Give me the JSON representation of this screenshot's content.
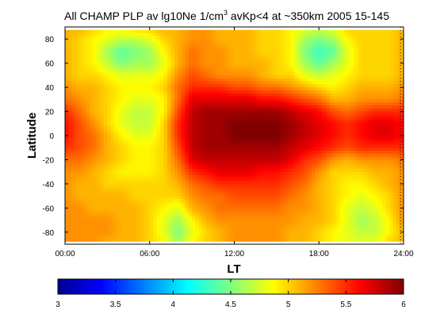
{
  "chart_data": {
    "type": "heatmap",
    "title": {
      "main": "All CHAMP PLP av lg10Ne 1/cm",
      "sup": "3",
      "rest": " avKp<4 at ~350km 2005 15-145"
    },
    "xlabel": "LT",
    "ylabel": "Latitude",
    "xlim": [
      0,
      24
    ],
    "ylim": [
      -90,
      90
    ],
    "x_ticks": [
      0,
      6,
      12,
      18,
      24
    ],
    "x_tick_labels": [
      "00:00",
      "06:00",
      "12:00",
      "18:00",
      "24:00"
    ],
    "y_ticks": [
      -80,
      -60,
      -40,
      -20,
      0,
      20,
      40,
      60,
      80
    ],
    "y_tick_labels": [
      "-80",
      "-60",
      "-40",
      "-20",
      "0",
      "20",
      "40",
      "60",
      "80"
    ],
    "colorbar": {
      "range": [
        3,
        6
      ],
      "ticks": [
        3,
        3.5,
        4,
        4.5,
        5,
        5.5,
        6
      ],
      "tick_labels": [
        "3",
        "3.5",
        "4",
        "4.5",
        "5",
        "5.5",
        "6"
      ],
      "colormap": "jet"
    },
    "grid": false,
    "lt_hours": [
      0,
      1,
      2,
      3,
      4,
      5,
      6,
      7,
      8,
      9,
      10,
      11,
      12,
      13,
      14,
      15,
      16,
      17,
      18,
      19,
      20,
      21,
      22,
      23,
      24
    ],
    "latitudes": [
      88,
      80,
      70,
      60,
      50,
      40,
      30,
      20,
      10,
      0,
      -10,
      -20,
      -30,
      -40,
      -50,
      -60,
      -70,
      -80,
      -88
    ],
    "values": [
      [
        5.1,
        5.1,
        5.0,
        4.9,
        4.9,
        5.0,
        5.0,
        5.1,
        5.1,
        5.2,
        5.2,
        5.1,
        5.1,
        5.1,
        5.0,
        5.0,
        4.9,
        4.8,
        4.7,
        4.8,
        5.0,
        5.0,
        5.0,
        5.0,
        5.1
      ],
      [
        5.1,
        5.0,
        4.9,
        4.8,
        4.7,
        4.7,
        4.8,
        5.0,
        5.1,
        5.2,
        5.2,
        5.1,
        5.1,
        5.1,
        5.0,
        5.0,
        4.9,
        4.6,
        4.5,
        4.6,
        4.9,
        5.0,
        5.0,
        5.0,
        5.1
      ],
      [
        5.1,
        5.0,
        4.9,
        4.6,
        4.4,
        4.5,
        4.6,
        4.9,
        5.1,
        5.3,
        5.2,
        5.2,
        5.1,
        5.1,
        5.0,
        5.0,
        4.9,
        4.5,
        4.3,
        4.4,
        4.8,
        5.0,
        5.0,
        5.0,
        5.1
      ],
      [
        5.1,
        5.0,
        4.9,
        4.7,
        4.5,
        4.6,
        4.6,
        4.8,
        5.1,
        5.3,
        5.2,
        5.2,
        5.1,
        5.1,
        5.1,
        5.0,
        4.9,
        4.6,
        4.4,
        4.6,
        4.8,
        5.0,
        5.0,
        5.0,
        5.1
      ],
      [
        5.1,
        5.0,
        5.0,
        4.9,
        4.8,
        4.8,
        4.8,
        4.9,
        5.2,
        5.4,
        5.3,
        5.2,
        5.2,
        5.2,
        5.1,
        5.0,
        5.0,
        4.8,
        4.7,
        4.8,
        4.9,
        5.0,
        5.0,
        5.0,
        5.1
      ],
      [
        5.2,
        5.1,
        5.1,
        5.0,
        4.9,
        4.9,
        4.9,
        5.0,
        5.3,
        5.5,
        5.5,
        5.5,
        5.4,
        5.4,
        5.3,
        5.3,
        5.2,
        5.1,
        5.0,
        4.9,
        5.0,
        5.1,
        5.1,
        5.1,
        5.2
      ],
      [
        5.3,
        5.2,
        5.1,
        5.0,
        4.9,
        4.8,
        4.8,
        4.9,
        5.3,
        5.7,
        5.7,
        5.7,
        5.7,
        5.7,
        5.6,
        5.6,
        5.5,
        5.4,
        5.3,
        5.1,
        5.1,
        5.2,
        5.2,
        5.2,
        5.3
      ],
      [
        5.5,
        5.3,
        5.1,
        5.0,
        4.8,
        4.7,
        4.7,
        4.9,
        5.4,
        5.8,
        5.9,
        5.9,
        5.9,
        5.9,
        5.9,
        5.9,
        5.8,
        5.7,
        5.6,
        5.4,
        5.3,
        5.4,
        5.5,
        5.5,
        5.5
      ],
      [
        5.6,
        5.4,
        5.2,
        5.0,
        4.8,
        4.7,
        4.7,
        5.0,
        5.5,
        5.8,
        5.9,
        5.9,
        6.0,
        6.0,
        6.0,
        6.0,
        5.9,
        5.8,
        5.7,
        5.6,
        5.5,
        5.6,
        5.7,
        5.7,
        5.6
      ],
      [
        5.6,
        5.4,
        5.3,
        5.1,
        4.9,
        4.8,
        4.8,
        5.0,
        5.5,
        5.8,
        5.9,
        5.9,
        6.0,
        6.0,
        6.0,
        6.0,
        5.9,
        5.8,
        5.7,
        5.6,
        5.5,
        5.6,
        5.7,
        5.7,
        5.6
      ],
      [
        5.5,
        5.4,
        5.3,
        5.1,
        5.0,
        4.9,
        4.9,
        5.0,
        5.4,
        5.8,
        5.9,
        5.9,
        5.9,
        5.9,
        5.9,
        5.9,
        5.8,
        5.7,
        5.6,
        5.5,
        5.4,
        5.5,
        5.5,
        5.5,
        5.5
      ],
      [
        5.3,
        5.3,
        5.2,
        5.1,
        5.0,
        4.9,
        4.9,
        5.0,
        5.3,
        5.7,
        5.8,
        5.8,
        5.8,
        5.8,
        5.8,
        5.8,
        5.7,
        5.5,
        5.4,
        5.2,
        5.1,
        5.2,
        5.2,
        5.2,
        5.3
      ],
      [
        5.2,
        5.2,
        5.1,
        5.0,
        4.9,
        4.9,
        4.9,
        5.0,
        5.2,
        5.5,
        5.6,
        5.7,
        5.7,
        5.7,
        5.6,
        5.6,
        5.5,
        5.4,
        5.2,
        5.0,
        5.0,
        5.0,
        5.1,
        5.1,
        5.2
      ],
      [
        5.2,
        5.1,
        5.1,
        5.0,
        5.0,
        5.0,
        5.0,
        5.0,
        5.1,
        5.3,
        5.4,
        5.5,
        5.5,
        5.5,
        5.5,
        5.5,
        5.4,
        5.3,
        5.1,
        5.0,
        4.9,
        4.9,
        5.0,
        5.1,
        5.2
      ],
      [
        5.2,
        5.1,
        5.1,
        5.1,
        5.1,
        5.0,
        5.0,
        5.0,
        5.0,
        5.2,
        5.3,
        5.3,
        5.4,
        5.4,
        5.4,
        5.4,
        5.3,
        5.2,
        5.1,
        5.0,
        4.9,
        4.8,
        4.9,
        5.0,
        5.2
      ],
      [
        5.2,
        5.2,
        5.1,
        5.1,
        5.1,
        5.1,
        5.0,
        4.9,
        4.8,
        5.1,
        5.2,
        5.3,
        5.3,
        5.3,
        5.3,
        5.3,
        5.2,
        5.2,
        5.1,
        5.0,
        4.8,
        4.7,
        4.8,
        5.0,
        5.2
      ],
      [
        5.2,
        5.2,
        5.2,
        5.2,
        5.1,
        5.1,
        5.0,
        4.8,
        4.6,
        4.9,
        5.1,
        5.2,
        5.2,
        5.2,
        5.2,
        5.2,
        5.2,
        5.1,
        5.1,
        5.0,
        4.8,
        4.6,
        4.7,
        4.9,
        5.2
      ],
      [
        5.2,
        5.2,
        5.2,
        5.2,
        5.1,
        5.1,
        5.0,
        4.8,
        4.5,
        4.8,
        5.0,
        5.1,
        5.2,
        5.2,
        5.2,
        5.2,
        5.1,
        5.1,
        5.0,
        4.9,
        4.8,
        4.7,
        4.7,
        4.9,
        5.1
      ],
      [
        5.2,
        5.2,
        5.2,
        5.1,
        5.1,
        5.1,
        5.0,
        4.9,
        4.6,
        4.9,
        5.0,
        5.1,
        5.2,
        5.2,
        5.2,
        5.2,
        5.1,
        5.1,
        5.0,
        4.9,
        4.8,
        4.8,
        4.8,
        5.0,
        5.1
      ]
    ]
  }
}
